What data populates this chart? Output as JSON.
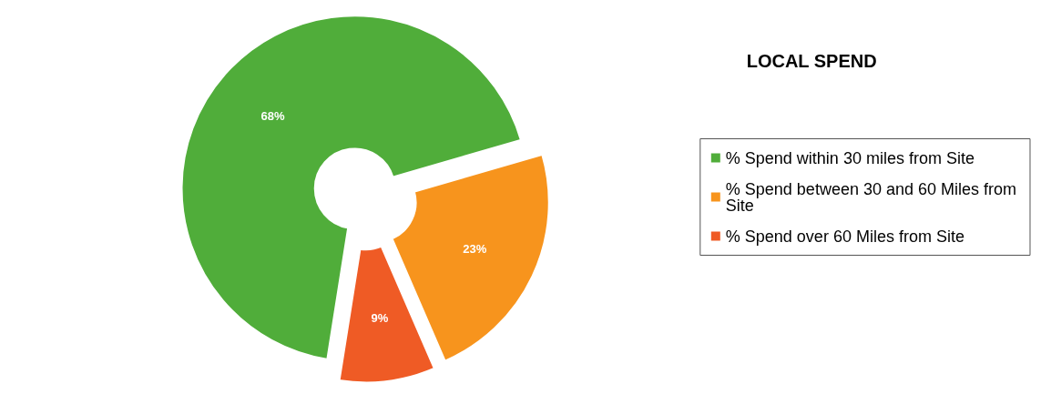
{
  "chart_data": {
    "type": "donut",
    "title": "LOCAL SPEND",
    "categories": [
      "% Spend within 30 miles from Site",
      "% Spend between 30 and 60 Miles from Site",
      "% Spend over 60 Miles from Site"
    ],
    "values": [
      68,
      23,
      9
    ],
    "colors": [
      "#50ad3a",
      "#f7941d",
      "#ef5b25"
    ],
    "value_labels": [
      "68%",
      "23%",
      "9%"
    ],
    "legend": "right"
  }
}
